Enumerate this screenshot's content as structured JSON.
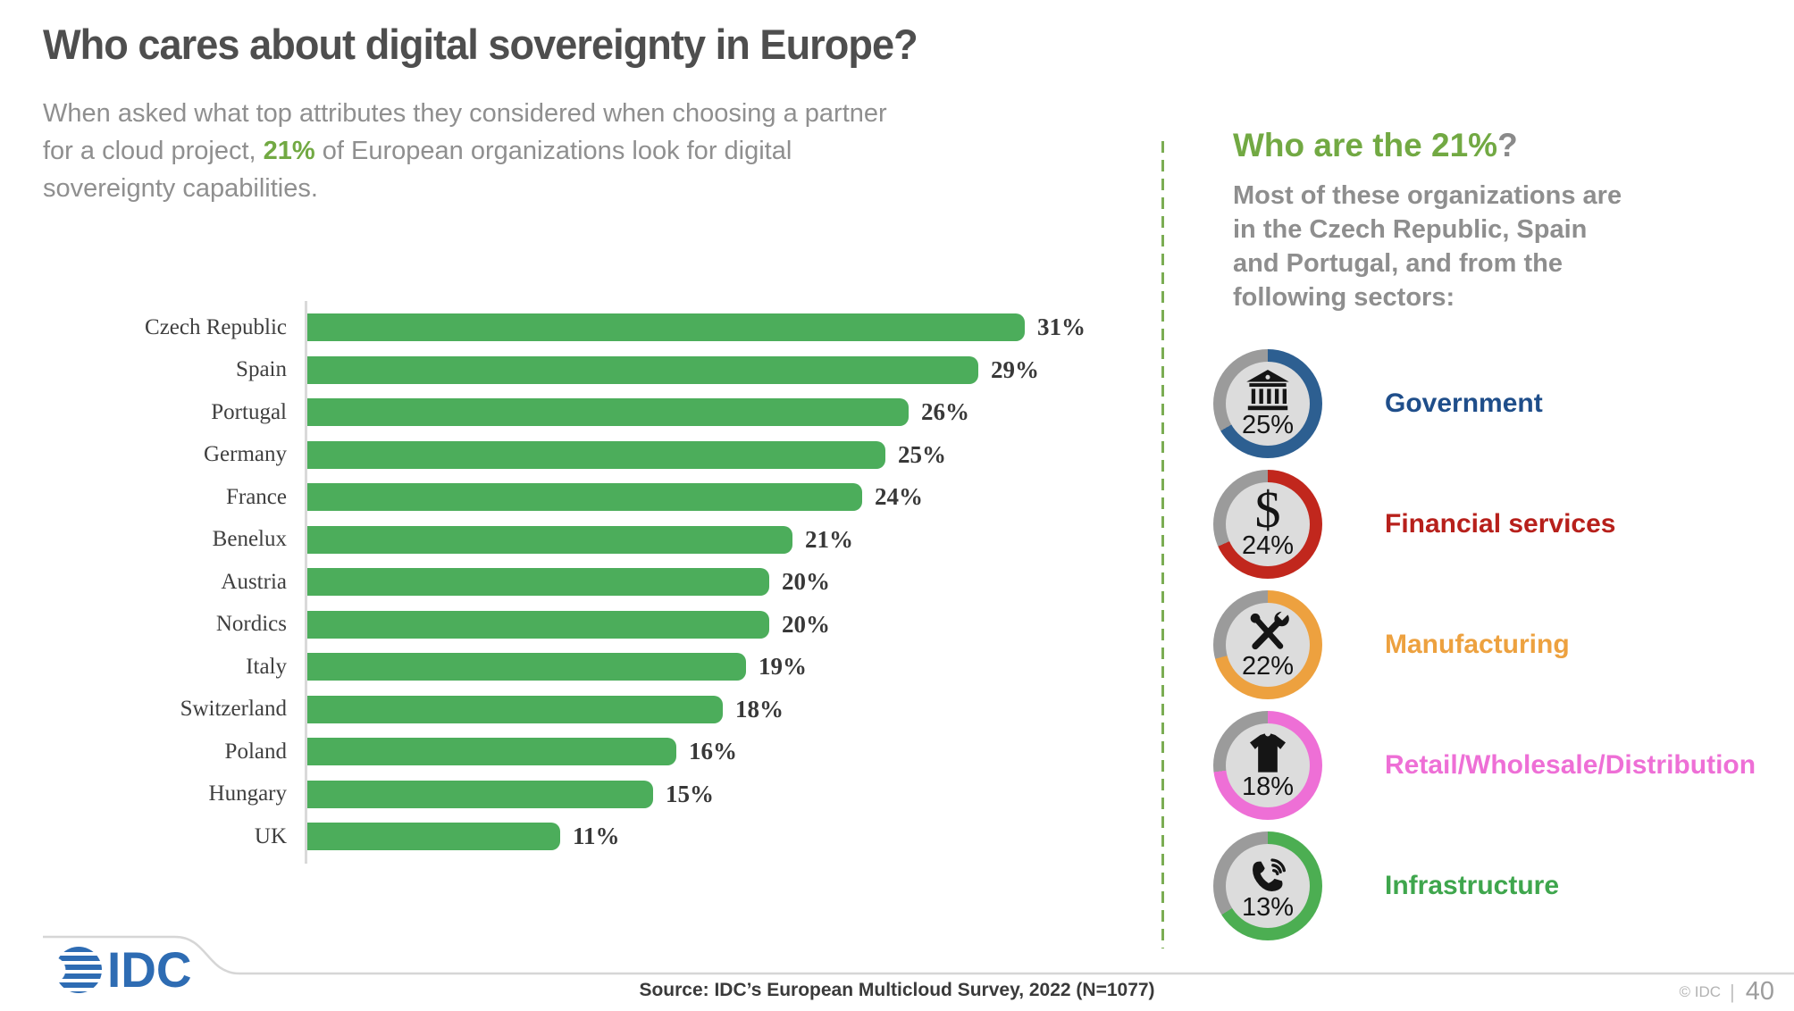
{
  "slide": {
    "title": "Who cares about digital sovereignty in Europe?",
    "subtitle": {
      "before": "When asked what top attributes they considered when choosing a partner for a cloud project, ",
      "highlight": "21%",
      "after": " of European organizations look for digital sovereignty capabilities."
    }
  },
  "chart_data": {
    "type": "bar",
    "orientation": "horizontal",
    "title": "",
    "xlabel": "",
    "ylabel": "",
    "grid": false,
    "xlim": [
      0,
      31
    ],
    "value_suffix": "%",
    "bar_color": "#4cad5b",
    "categories": [
      "Czech Republic",
      "Spain",
      "Portugal",
      "Germany",
      "France",
      "Benelux",
      "Austria",
      "Nordics",
      "Italy",
      "Switzerland",
      "Poland",
      "Hungary",
      "UK"
    ],
    "values": [
      31,
      29,
      26,
      25,
      24,
      21,
      20,
      20,
      19,
      18,
      16,
      15,
      11
    ]
  },
  "right_panel": {
    "heading": {
      "main": "Who are the 21%",
      "question_mark": "?"
    },
    "description_lines": [
      "Most of these organizations are",
      "in the Czech Republic, Spain",
      "and Portugal, and from the",
      "following sectors:"
    ],
    "ring_track_color": "#9b9b9b",
    "inner_circle_color": "#dcdcdc",
    "sectors": [
      {
        "label": "Government",
        "pct": "25%",
        "ring_color": "#2d5f91",
        "label_color": "#1f4e8a",
        "sweep_deg": 240,
        "icon": "bank-icon"
      },
      {
        "label": "Financial services",
        "pct": "24%",
        "ring_color": "#c1271d",
        "label_color": "#b7201b",
        "sweep_deg": 246,
        "icon": "dollar-icon",
        "icon_char": "$"
      },
      {
        "label": "Manufacturing",
        "pct": "22%",
        "ring_color": "#eda13f",
        "label_color": "#eda13f",
        "sweep_deg": 255,
        "icon": "tools-icon"
      },
      {
        "label": "Retail/Wholesale/Distribution",
        "pct": "18%",
        "ring_color": "#ee6fd6",
        "label_color": "#ee6fd6",
        "sweep_deg": 263,
        "icon": "tshirt-icon"
      },
      {
        "label": "Infrastructure",
        "pct": "13%",
        "ring_color": "#4cae52",
        "label_color": "#3fa64d",
        "sweep_deg": 238,
        "icon": "phone-icon"
      }
    ]
  },
  "footer": {
    "source": "Source: IDC’s European Multicloud Survey, 2022 (N=1077)",
    "logo_text": "IDC",
    "copyright": "© IDC",
    "separator": "|",
    "page_number": "40"
  },
  "colors": {
    "accent_green": "#72a943",
    "bar_green": "#4cad5b",
    "title_gray": "#4e4e4e",
    "body_gray": "#8f8f8f",
    "divider_green": "#7bad53",
    "footer_line_gray": "#d6d6d6",
    "idc_blue": "#2e6cb3"
  }
}
